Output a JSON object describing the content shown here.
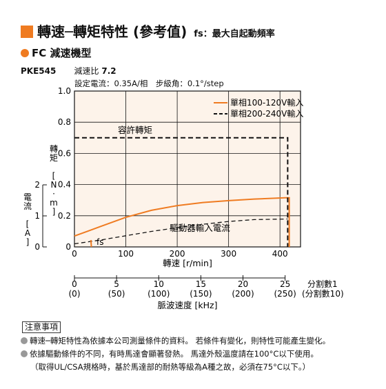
{
  "header": {
    "title": "轉速─轉矩特性 (參考值)",
    "subtitle": "fs：最大自起動頻率"
  },
  "section_label": "FC 減速機型",
  "model": {
    "name": "PKE545",
    "ratio_label": "減速比",
    "ratio_value": "7.2"
  },
  "setting_text": "設定電流：0.35A/相　步級角：0.1°/step",
  "colors": {
    "accent": "#ef7b21",
    "plot_bg": "#fdf3ea",
    "curve_orange": "#ef7b21",
    "curve_black": "#111111"
  },
  "chart_data": {
    "type": "line",
    "xlabel": "轉速 [r/min]",
    "ylabel": "轉矩 [N·m]",
    "y2label": "電流 [A]",
    "xlim": [
      0,
      440
    ],
    "ylim": [
      0,
      1.0
    ],
    "y2lim": [
      0,
      2
    ],
    "x_ticks": [
      "0",
      "100",
      "200",
      "300",
      "400"
    ],
    "y_ticks": [
      "0",
      "0.2",
      "0.4",
      "0.6",
      "0.8",
      "1.0"
    ],
    "y2_ticks": [
      "0",
      "1",
      "2"
    ],
    "grid": true,
    "legend_position": "top-right",
    "series": [
      {
        "name": "單相100-120V輸入",
        "style": "solid",
        "color": "#ef7b21",
        "x": [
          0,
          50,
          100,
          150,
          200,
          250,
          300,
          350,
          410,
          418,
          418
        ],
        "y": [
          0.07,
          0.13,
          0.19,
          0.235,
          0.265,
          0.285,
          0.297,
          0.307,
          0.315,
          0.315,
          0
        ]
      },
      {
        "name": "單相200-240V輸入",
        "style": "dashed",
        "color": "#111111",
        "x": [
          0,
          415,
          415
        ],
        "y": [
          0.7,
          0.7,
          0
        ]
      },
      {
        "name": "驅動器輸入電流",
        "style": "dashed",
        "color": "#111111",
        "axis": "y2",
        "x": [
          0,
          50,
          100,
          150,
          200,
          250,
          300,
          350,
          415
        ],
        "y": [
          0.1,
          0.22,
          0.36,
          0.5,
          0.62,
          0.73,
          0.82,
          0.88,
          0.9
        ]
      }
    ],
    "annotations": [
      "容許轉矩",
      "驅動器輸入電流",
      "fs"
    ],
    "freq_axis": {
      "ticks": [
        "0",
        "5",
        "10",
        "15",
        "20",
        "25"
      ],
      "ticks_paren": [
        "(0)",
        "(50)",
        "(100)",
        "(150)",
        "(200)",
        "(250)"
      ],
      "label": "脈波速度 [kHz]",
      "right_label_1": "分割數1",
      "right_label_2": "(分割數10)"
    }
  },
  "notes": {
    "title": "注意事項",
    "line1": "轉速─轉矩特性為依據本公司測量條件的資料。 若條件有變化，則特性可能產生變化。",
    "line2": "依據驅動條件的不同，有時馬達會顯著發熱。 馬達外殼溫度請在100°C以下使用。",
    "line3": "（取得UL/CSA規格時，基於馬達部的耐熱等級為A種之故，必須在75°C以下。）"
  }
}
